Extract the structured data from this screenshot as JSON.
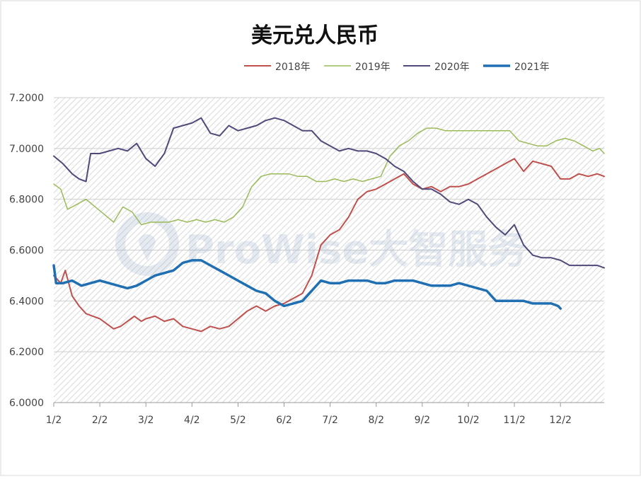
{
  "chart_data": {
    "type": "line",
    "title": "美元兑人民币",
    "xlabel": "",
    "ylabel": "",
    "ylim": [
      6.0,
      7.2
    ],
    "yticks": [
      "7.2000",
      "7.0000",
      "6.8000",
      "6.6000",
      "6.4000",
      "6.2000",
      "6.0000"
    ],
    "ytick_values": [
      7.2,
      7.0,
      6.8,
      6.6,
      6.4,
      6.2,
      6.0
    ],
    "xticks": [
      "1/2",
      "2/2",
      "3/2",
      "4/2",
      "5/2",
      "6/2",
      "7/2",
      "8/2",
      "9/2",
      "10/2",
      "11/2",
      "12/2"
    ],
    "x_unit": "month",
    "xlim": [
      1,
      12.95
    ],
    "grid": true,
    "legend_position": "top",
    "watermark": "ProWise大智服务",
    "series": [
      {
        "name": "2018年",
        "color": "#c0504d",
        "line_width": 2,
        "points": [
          [
            1.0,
            6.5
          ],
          [
            1.15,
            6.47
          ],
          [
            1.25,
            6.52
          ],
          [
            1.4,
            6.42
          ],
          [
            1.55,
            6.38
          ],
          [
            1.7,
            6.35
          ],
          [
            1.85,
            6.34
          ],
          [
            2.0,
            6.33
          ],
          [
            2.15,
            6.31
          ],
          [
            2.3,
            6.29
          ],
          [
            2.45,
            6.3
          ],
          [
            2.6,
            6.32
          ],
          [
            2.75,
            6.34
          ],
          [
            2.9,
            6.32
          ],
          [
            3.0,
            6.33
          ],
          [
            3.2,
            6.34
          ],
          [
            3.4,
            6.32
          ],
          [
            3.6,
            6.33
          ],
          [
            3.8,
            6.3
          ],
          [
            4.0,
            6.29
          ],
          [
            4.2,
            6.28
          ],
          [
            4.4,
            6.3
          ],
          [
            4.6,
            6.29
          ],
          [
            4.8,
            6.3
          ],
          [
            5.0,
            6.33
          ],
          [
            5.2,
            6.36
          ],
          [
            5.4,
            6.38
          ],
          [
            5.6,
            6.36
          ],
          [
            5.8,
            6.38
          ],
          [
            6.0,
            6.39
          ],
          [
            6.2,
            6.41
          ],
          [
            6.4,
            6.43
          ],
          [
            6.6,
            6.5
          ],
          [
            6.8,
            6.62
          ],
          [
            7.0,
            6.66
          ],
          [
            7.2,
            6.68
          ],
          [
            7.4,
            6.73
          ],
          [
            7.6,
            6.8
          ],
          [
            7.8,
            6.83
          ],
          [
            8.0,
            6.84
          ],
          [
            8.2,
            6.86
          ],
          [
            8.4,
            6.88
          ],
          [
            8.6,
            6.9
          ],
          [
            8.8,
            6.86
          ],
          [
            9.0,
            6.84
          ],
          [
            9.2,
            6.85
          ],
          [
            9.4,
            6.83
          ],
          [
            9.6,
            6.85
          ],
          [
            9.8,
            6.85
          ],
          [
            10.0,
            6.86
          ],
          [
            10.2,
            6.88
          ],
          [
            10.4,
            6.9
          ],
          [
            10.6,
            6.92
          ],
          [
            10.8,
            6.94
          ],
          [
            11.0,
            6.96
          ],
          [
            11.2,
            6.91
          ],
          [
            11.4,
            6.95
          ],
          [
            11.6,
            6.94
          ],
          [
            11.8,
            6.93
          ],
          [
            12.0,
            6.88
          ],
          [
            12.2,
            6.88
          ],
          [
            12.4,
            6.9
          ],
          [
            12.6,
            6.89
          ],
          [
            12.8,
            6.9
          ],
          [
            12.95,
            6.89
          ]
        ]
      },
      {
        "name": "2019年",
        "color": "#9bbb59",
        "line_width": 1.5,
        "points": [
          [
            1.0,
            6.86
          ],
          [
            1.15,
            6.84
          ],
          [
            1.3,
            6.76
          ],
          [
            1.5,
            6.78
          ],
          [
            1.7,
            6.8
          ],
          [
            1.9,
            6.77
          ],
          [
            2.1,
            6.74
          ],
          [
            2.3,
            6.71
          ],
          [
            2.5,
            6.77
          ],
          [
            2.7,
            6.75
          ],
          [
            2.9,
            6.7
          ],
          [
            3.1,
            6.71
          ],
          [
            3.3,
            6.71
          ],
          [
            3.5,
            6.71
          ],
          [
            3.7,
            6.72
          ],
          [
            3.9,
            6.71
          ],
          [
            4.1,
            6.72
          ],
          [
            4.3,
            6.71
          ],
          [
            4.5,
            6.72
          ],
          [
            4.7,
            6.71
          ],
          [
            4.9,
            6.73
          ],
          [
            5.1,
            6.77
          ],
          [
            5.3,
            6.85
          ],
          [
            5.5,
            6.89
          ],
          [
            5.7,
            6.9
          ],
          [
            5.9,
            6.9
          ],
          [
            6.1,
            6.9
          ],
          [
            6.3,
            6.89
          ],
          [
            6.5,
            6.89
          ],
          [
            6.7,
            6.87
          ],
          [
            6.9,
            6.87
          ],
          [
            7.1,
            6.88
          ],
          [
            7.3,
            6.87
          ],
          [
            7.5,
            6.88
          ],
          [
            7.7,
            6.87
          ],
          [
            7.9,
            6.88
          ],
          [
            8.1,
            6.89
          ],
          [
            8.3,
            6.97
          ],
          [
            8.5,
            7.01
          ],
          [
            8.7,
            7.03
          ],
          [
            8.9,
            7.06
          ],
          [
            9.1,
            7.08
          ],
          [
            9.3,
            7.08
          ],
          [
            9.5,
            7.07
          ],
          [
            9.7,
            7.07
          ],
          [
            9.9,
            7.07
          ],
          [
            10.1,
            7.07
          ],
          [
            10.3,
            7.07
          ],
          [
            10.5,
            7.07
          ],
          [
            10.7,
            7.07
          ],
          [
            10.9,
            7.07
          ],
          [
            11.1,
            7.03
          ],
          [
            11.3,
            7.02
          ],
          [
            11.5,
            7.01
          ],
          [
            11.7,
            7.01
          ],
          [
            11.9,
            7.03
          ],
          [
            12.1,
            7.04
          ],
          [
            12.3,
            7.03
          ],
          [
            12.5,
            7.01
          ],
          [
            12.7,
            6.99
          ],
          [
            12.85,
            7.0
          ],
          [
            12.95,
            6.98
          ]
        ]
      },
      {
        "name": "2020年",
        "color": "#4f4a7a",
        "line_width": 2,
        "points": [
          [
            1.0,
            6.97
          ],
          [
            1.2,
            6.94
          ],
          [
            1.4,
            6.9
          ],
          [
            1.55,
            6.88
          ],
          [
            1.7,
            6.87
          ],
          [
            1.8,
            6.98
          ],
          [
            2.0,
            6.98
          ],
          [
            2.2,
            6.99
          ],
          [
            2.4,
            7.0
          ],
          [
            2.6,
            6.99
          ],
          [
            2.8,
            7.02
          ],
          [
            3.0,
            6.96
          ],
          [
            3.2,
            6.93
          ],
          [
            3.4,
            6.98
          ],
          [
            3.6,
            7.08
          ],
          [
            3.8,
            7.09
          ],
          [
            4.0,
            7.1
          ],
          [
            4.2,
            7.12
          ],
          [
            4.4,
            7.06
          ],
          [
            4.6,
            7.05
          ],
          [
            4.8,
            7.09
          ],
          [
            5.0,
            7.07
          ],
          [
            5.2,
            7.08
          ],
          [
            5.4,
            7.09
          ],
          [
            5.6,
            7.11
          ],
          [
            5.8,
            7.12
          ],
          [
            6.0,
            7.11
          ],
          [
            6.2,
            7.09
          ],
          [
            6.4,
            7.07
          ],
          [
            6.6,
            7.07
          ],
          [
            6.8,
            7.03
          ],
          [
            7.0,
            7.01
          ],
          [
            7.2,
            6.99
          ],
          [
            7.4,
            7.0
          ],
          [
            7.6,
            6.99
          ],
          [
            7.8,
            6.99
          ],
          [
            8.0,
            6.98
          ],
          [
            8.2,
            6.96
          ],
          [
            8.4,
            6.93
          ],
          [
            8.6,
            6.91
          ],
          [
            8.8,
            6.87
          ],
          [
            9.0,
            6.84
          ],
          [
            9.2,
            6.84
          ],
          [
            9.4,
            6.82
          ],
          [
            9.6,
            6.79
          ],
          [
            9.8,
            6.78
          ],
          [
            10.0,
            6.8
          ],
          [
            10.2,
            6.78
          ],
          [
            10.4,
            6.73
          ],
          [
            10.6,
            6.69
          ],
          [
            10.8,
            6.66
          ],
          [
            11.0,
            6.7
          ],
          [
            11.2,
            6.62
          ],
          [
            11.4,
            6.58
          ],
          [
            11.6,
            6.57
          ],
          [
            11.8,
            6.57
          ],
          [
            12.0,
            6.56
          ],
          [
            12.2,
            6.54
          ],
          [
            12.4,
            6.54
          ],
          [
            12.6,
            6.54
          ],
          [
            12.8,
            6.54
          ],
          [
            12.95,
            6.53
          ]
        ]
      },
      {
        "name": "2021年",
        "color": "#1f6fb2",
        "line_width": 3.5,
        "points": [
          [
            1.0,
            6.54
          ],
          [
            1.05,
            6.47
          ],
          [
            1.2,
            6.47
          ],
          [
            1.4,
            6.48
          ],
          [
            1.6,
            6.46
          ],
          [
            1.8,
            6.47
          ],
          [
            2.0,
            6.48
          ],
          [
            2.2,
            6.47
          ],
          [
            2.4,
            6.46
          ],
          [
            2.6,
            6.45
          ],
          [
            2.8,
            6.46
          ],
          [
            3.0,
            6.48
          ],
          [
            3.2,
            6.5
          ],
          [
            3.4,
            6.51
          ],
          [
            3.6,
            6.52
          ],
          [
            3.8,
            6.55
          ],
          [
            4.0,
            6.56
          ],
          [
            4.2,
            6.56
          ],
          [
            4.4,
            6.54
          ],
          [
            4.6,
            6.52
          ],
          [
            4.8,
            6.5
          ],
          [
            5.0,
            6.48
          ],
          [
            5.2,
            6.46
          ],
          [
            5.4,
            6.44
          ],
          [
            5.6,
            6.43
          ],
          [
            5.8,
            6.4
          ],
          [
            6.0,
            6.38
          ],
          [
            6.2,
            6.39
          ],
          [
            6.4,
            6.4
          ],
          [
            6.6,
            6.44
          ],
          [
            6.8,
            6.48
          ],
          [
            7.0,
            6.47
          ],
          [
            7.2,
            6.47
          ],
          [
            7.4,
            6.48
          ],
          [
            7.6,
            6.48
          ],
          [
            7.8,
            6.48
          ],
          [
            8.0,
            6.47
          ],
          [
            8.2,
            6.47
          ],
          [
            8.4,
            6.48
          ],
          [
            8.6,
            6.48
          ],
          [
            8.8,
            6.48
          ],
          [
            9.0,
            6.47
          ],
          [
            9.2,
            6.46
          ],
          [
            9.4,
            6.46
          ],
          [
            9.6,
            6.46
          ],
          [
            9.8,
            6.47
          ],
          [
            10.0,
            6.46
          ],
          [
            10.2,
            6.45
          ],
          [
            10.4,
            6.44
          ],
          [
            10.6,
            6.4
          ],
          [
            10.8,
            6.4
          ],
          [
            11.0,
            6.4
          ],
          [
            11.2,
            6.4
          ],
          [
            11.4,
            6.39
          ],
          [
            11.6,
            6.39
          ],
          [
            11.8,
            6.39
          ],
          [
            11.95,
            6.38
          ],
          [
            12.0,
            6.37
          ]
        ]
      }
    ]
  }
}
